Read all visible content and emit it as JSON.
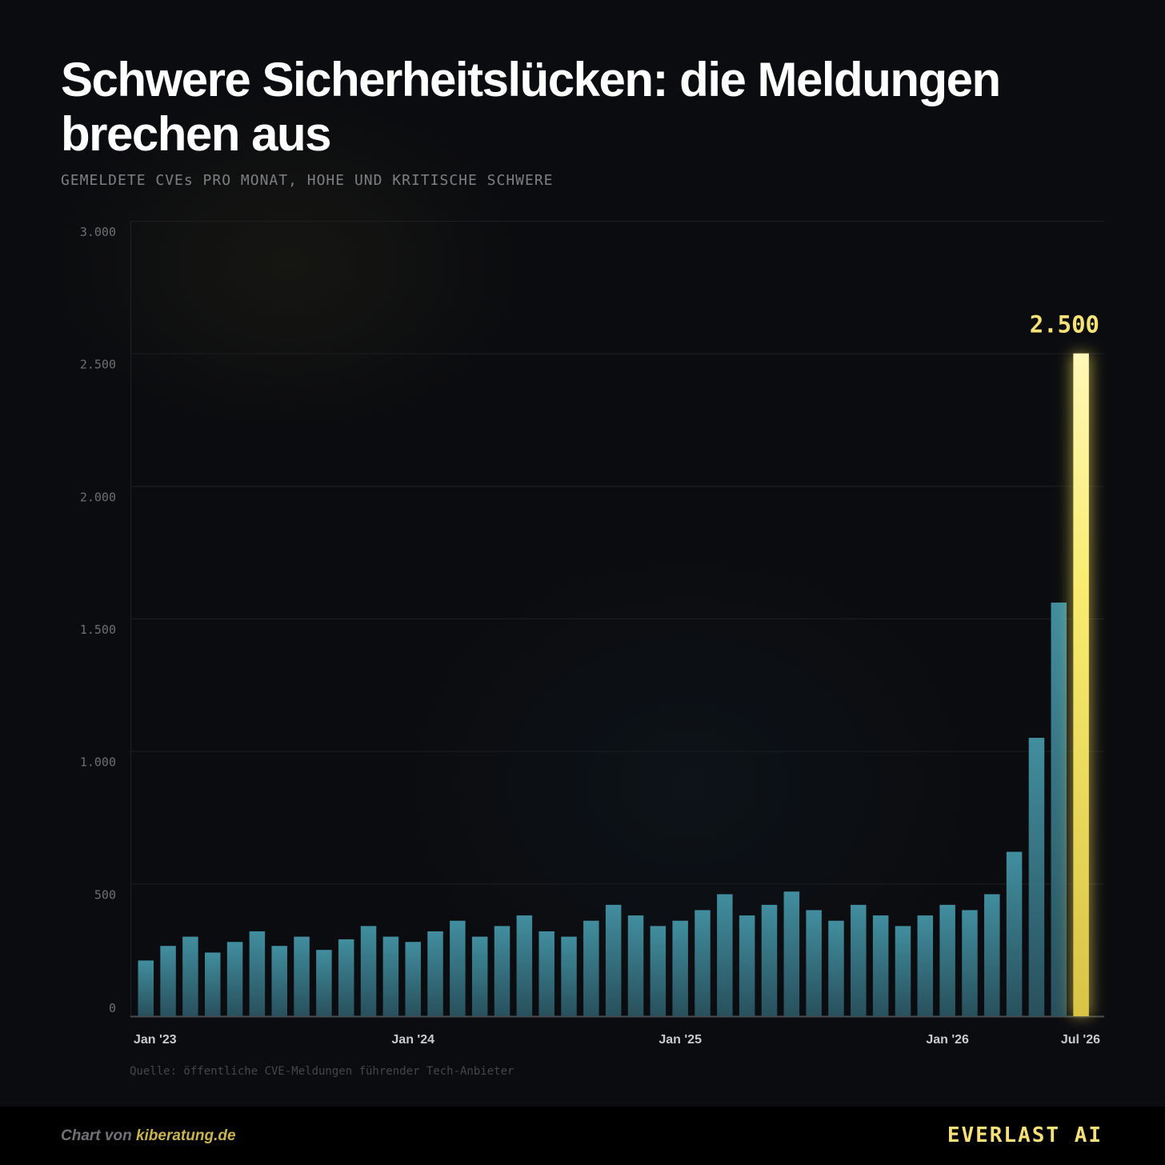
{
  "header": {
    "title": "Schwere Sicherheitslücken: die Meldungen brechen aus",
    "subtitle": "GEMELDETE CVEs PRO MONAT, HOHE UND KRITISCHE SCHWERE"
  },
  "chart_data": {
    "type": "bar",
    "title": "Schwere Sicherheitslücken: die Meldungen brechen aus",
    "subtitle": "GEMELDETE CVEs PRO MONAT, HOHE UND KRITISCHE SCHWERE",
    "xlabel": "",
    "ylabel": "",
    "ylim": [
      0,
      3000
    ],
    "y_ticks": [
      0,
      500,
      1000,
      1500,
      2000,
      2500,
      3000
    ],
    "y_tick_labels": [
      "0",
      "500",
      "1.000",
      "1.500",
      "2.000",
      "2.500",
      "3.000"
    ],
    "x_tick_labels": [
      {
        "index": 0,
        "label": "Jan '23"
      },
      {
        "index": 12,
        "label": "Jan '24"
      },
      {
        "index": 24,
        "label": "Jan '25"
      },
      {
        "index": 36,
        "label": "Jan '26"
      },
      {
        "index": 42,
        "label": "Jul '26"
      }
    ],
    "values": [
      210,
      265,
      300,
      240,
      280,
      320,
      265,
      300,
      250,
      290,
      340,
      300,
      280,
      320,
      360,
      300,
      340,
      380,
      320,
      300,
      360,
      420,
      380,
      340,
      360,
      400,
      460,
      380,
      420,
      470,
      400,
      360,
      420,
      380,
      340,
      380,
      420,
      400,
      460,
      620,
      1050,
      1560,
      2500
    ],
    "highlight": {
      "index": 42,
      "value": 2500,
      "label": "2.500"
    },
    "grid": true,
    "colors": {
      "bar": "#3f8b9c",
      "highlight": "#f7e86a",
      "grid": "#1d1f24",
      "highlight_label": "#f7e27a"
    }
  },
  "source_text": "Quelle: öffentliche CVE-Meldungen führender Tech-Anbieter",
  "footer": {
    "credit_prefix": "Chart von ",
    "credit_site": "kiberatung.de",
    "brand": "EVERLAST AI"
  }
}
